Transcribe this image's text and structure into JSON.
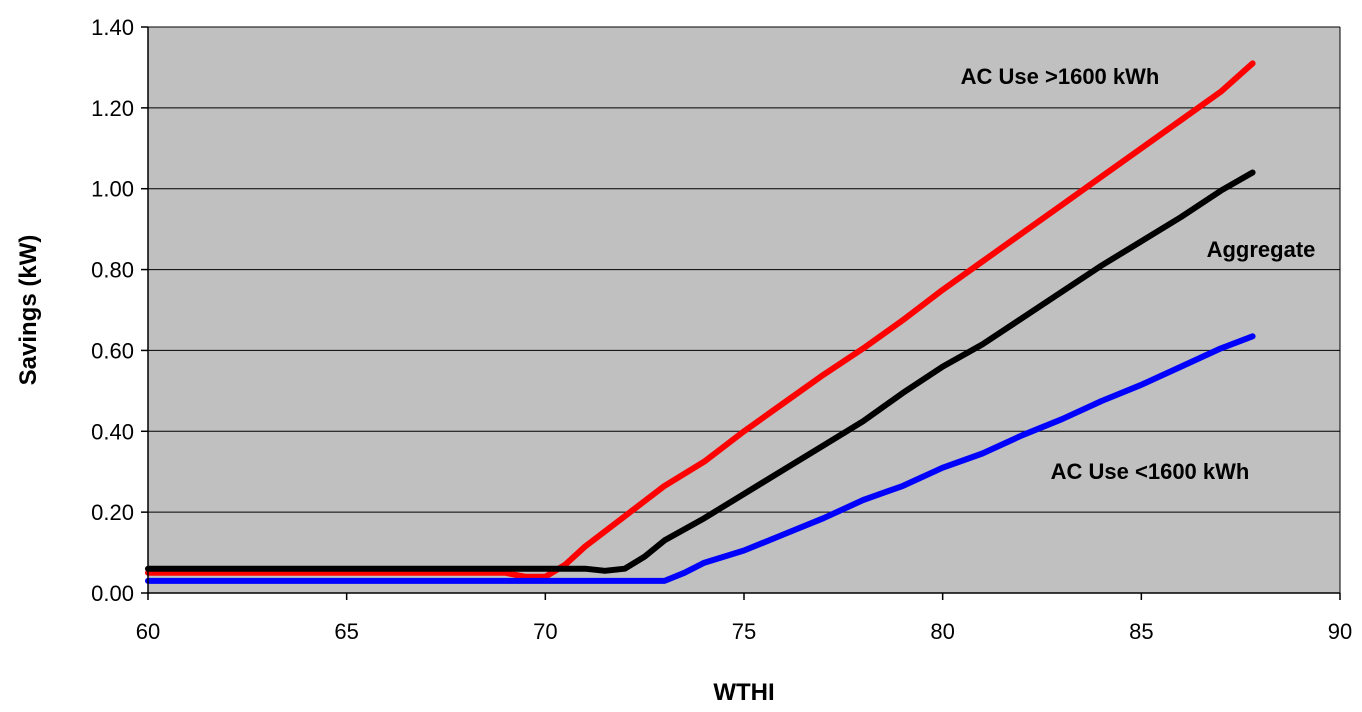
{
  "chart_data": {
    "type": "line",
    "title": "",
    "xlabel": "WTHI",
    "ylabel": "Savings (kW)",
    "xlim": [
      60,
      90
    ],
    "ylim": [
      0,
      1.4
    ],
    "x_ticks": [
      60,
      65,
      70,
      75,
      80,
      85,
      90
    ],
    "y_ticks": [
      0,
      0.2,
      0.4,
      0.6,
      0.8,
      1.0,
      1.2,
      1.4
    ],
    "x_tick_labels": [
      "60",
      "65",
      "70",
      "75",
      "80",
      "85",
      "90"
    ],
    "y_tick_labels": [
      "0.00",
      "0.20",
      "0.40",
      "0.60",
      "0.80",
      "1.00",
      "1.20",
      "1.40"
    ],
    "grid": "horizontal",
    "plot_background": "#c0c0c0",
    "series": [
      {
        "name": "AC Use >1600 kWh",
        "color": "#ff0000",
        "x": [
          60,
          69,
          69.5,
          70,
          70.5,
          71,
          72,
          73,
          74,
          75,
          76,
          77,
          78,
          79,
          80,
          81,
          82,
          83,
          84,
          85,
          86,
          87,
          87.8
        ],
        "y": [
          0.05,
          0.05,
          0.04,
          0.04,
          0.07,
          0.115,
          0.19,
          0.265,
          0.325,
          0.4,
          0.47,
          0.54,
          0.605,
          0.675,
          0.75,
          0.82,
          0.89,
          0.96,
          1.03,
          1.1,
          1.17,
          1.24,
          1.31
        ]
      },
      {
        "name": "Aggregate",
        "color": "#000000",
        "x": [
          60,
          70,
          71,
          71.5,
          72,
          72.5,
          73,
          74,
          75,
          76,
          77,
          78,
          79,
          80,
          81,
          82,
          83,
          84,
          85,
          86,
          87,
          87.8
        ],
        "y": [
          0.06,
          0.06,
          0.06,
          0.055,
          0.06,
          0.09,
          0.13,
          0.185,
          0.245,
          0.305,
          0.365,
          0.425,
          0.495,
          0.56,
          0.615,
          0.68,
          0.745,
          0.81,
          0.87,
          0.93,
          0.995,
          1.04
        ]
      },
      {
        "name": "AC Use <1600 kWh",
        "color": "#0000ff",
        "x": [
          60,
          73,
          73.5,
          74,
          75,
          76,
          77,
          78,
          79,
          80,
          81,
          82,
          83,
          84,
          85,
          86,
          87,
          87.8
        ],
        "y": [
          0.03,
          0.03,
          0.05,
          0.075,
          0.105,
          0.145,
          0.185,
          0.23,
          0.265,
          0.31,
          0.345,
          0.39,
          0.43,
          0.475,
          0.515,
          0.56,
          0.605,
          0.635
        ]
      }
    ],
    "annotations": [
      {
        "text": "AC Use >1600 kWh",
        "series": 0
      },
      {
        "text": "Aggregate",
        "series": 1
      },
      {
        "text": "AC Use <1600 kWh",
        "series": 2
      }
    ]
  }
}
